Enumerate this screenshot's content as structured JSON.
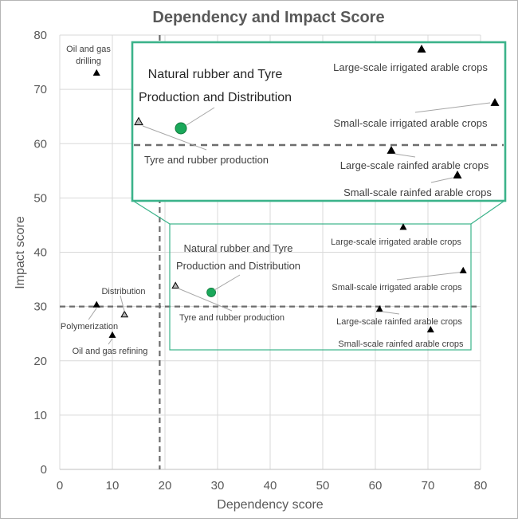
{
  "chart_data": {
    "type": "scatter",
    "title": "Dependency and Impact Score",
    "xlabel": "Dependency score",
    "ylabel": "Impact score",
    "xlim": [
      0,
      80
    ],
    "ylim": [
      0,
      80
    ],
    "x_ticks": [
      0,
      10,
      20,
      30,
      40,
      50,
      60,
      70,
      80
    ],
    "y_ticks": [
      0,
      10,
      20,
      30,
      40,
      50,
      60,
      70,
      80
    ],
    "grid": true,
    "thresholds": {
      "x": 19,
      "y": 30
    },
    "colors": {
      "highlight": "#1aa85a",
      "inset_border": "#3bb38a",
      "highlighted_marker": "#b5b5b5",
      "marker": "#000000",
      "threshold_line": "#6d6d6d"
    },
    "points": [
      {
        "label": "Oil and gas drilling",
        "x": 7,
        "y": 73,
        "marker": "triangle"
      },
      {
        "label": "Polymerization",
        "x": 7,
        "y": 30.3,
        "marker": "triangle"
      },
      {
        "label": "Distribution",
        "x": 12.3,
        "y": 28.5,
        "marker": "triangle-gray"
      },
      {
        "label": "Oil and gas refining",
        "x": 10,
        "y": 24.7,
        "marker": "triangle"
      },
      {
        "label": "Tyre and rubber production",
        "x": 22,
        "y": 33.8,
        "marker": "triangle-gray"
      },
      {
        "label": "Natural rubber and Tyre Production and Distribution",
        "x": 28.8,
        "y": 32.6,
        "marker": "circle"
      },
      {
        "label": "Large-scale irrigated arable crops",
        "x": 65.3,
        "y": 44.6,
        "marker": "triangle"
      },
      {
        "label": "Small-scale irrigated arable crops",
        "x": 76.7,
        "y": 36.6,
        "marker": "triangle"
      },
      {
        "label": "Large-scale rainfed arable crops",
        "x": 60.8,
        "y": 29.5,
        "marker": "triangle"
      },
      {
        "label": "Small-scale rainfed arable crops",
        "x": 70.5,
        "y": 25.7,
        "marker": "triangle"
      }
    ],
    "inset": {
      "title_lines": [
        "Natural rubber and Tyre",
        "Production and Distribution"
      ],
      "labels": {
        "tyre": "Tyre and rubber production",
        "lsi": "Large-scale irrigated arable crops",
        "ssi": "Small-scale irrigated arable crops",
        "lsr": "Large-scale rainfed arable crops",
        "ssr": "Small-scale rainfed arable crops"
      }
    },
    "main_labels": {
      "oil_drilling": [
        "Oil and gas",
        "drilling"
      ],
      "distribution": "Distribution",
      "polymerization": "Polymerization",
      "refining": "Oil and gas refining"
    }
  }
}
